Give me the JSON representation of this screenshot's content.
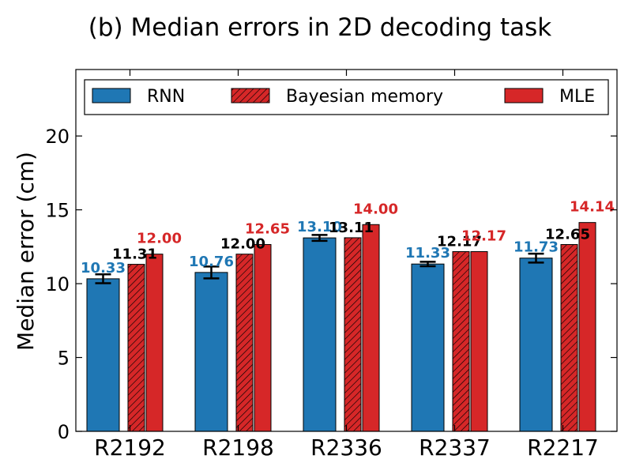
{
  "chart_data": {
    "type": "bar",
    "title": "(b)   Median errors in 2D decoding task",
    "xlabel": "",
    "ylabel": "Median error (cm)",
    "ylim": [
      0,
      24.5
    ],
    "yticks": [
      "0",
      "5",
      "10",
      "15",
      "20"
    ],
    "grid": false,
    "legend_position": "top",
    "categories": [
      "R2192",
      "R2198",
      "R2336",
      "R2337",
      "R2217"
    ],
    "series": [
      {
        "name": "RNN",
        "color": "#1f77b4",
        "hatch": false,
        "values": [
          10.33,
          10.76,
          13.1,
          11.33,
          11.73
        ],
        "labels": [
          "10.33",
          "10.76",
          "13.10",
          "11.33",
          "11.73"
        ],
        "error": [
          0.3,
          0.4,
          0.2,
          0.15,
          0.3
        ]
      },
      {
        "name": "Bayesian memory",
        "color": "#d62728",
        "hatch": true,
        "values": [
          11.31,
          12.0,
          13.11,
          12.17,
          12.65
        ],
        "labels": [
          "11.31",
          "12.00",
          "13.11",
          "12.17",
          "12.65"
        ]
      },
      {
        "name": "MLE",
        "color": "#d62728",
        "hatch": false,
        "values": [
          12.0,
          12.65,
          14.0,
          12.17,
          14.14
        ],
        "labels": [
          "12.00",
          "12.65",
          "14.00",
          "12.17",
          "14.14"
        ]
      }
    ],
    "label_colors": [
      "#1f77b4",
      "#000000",
      "#d62728"
    ]
  }
}
